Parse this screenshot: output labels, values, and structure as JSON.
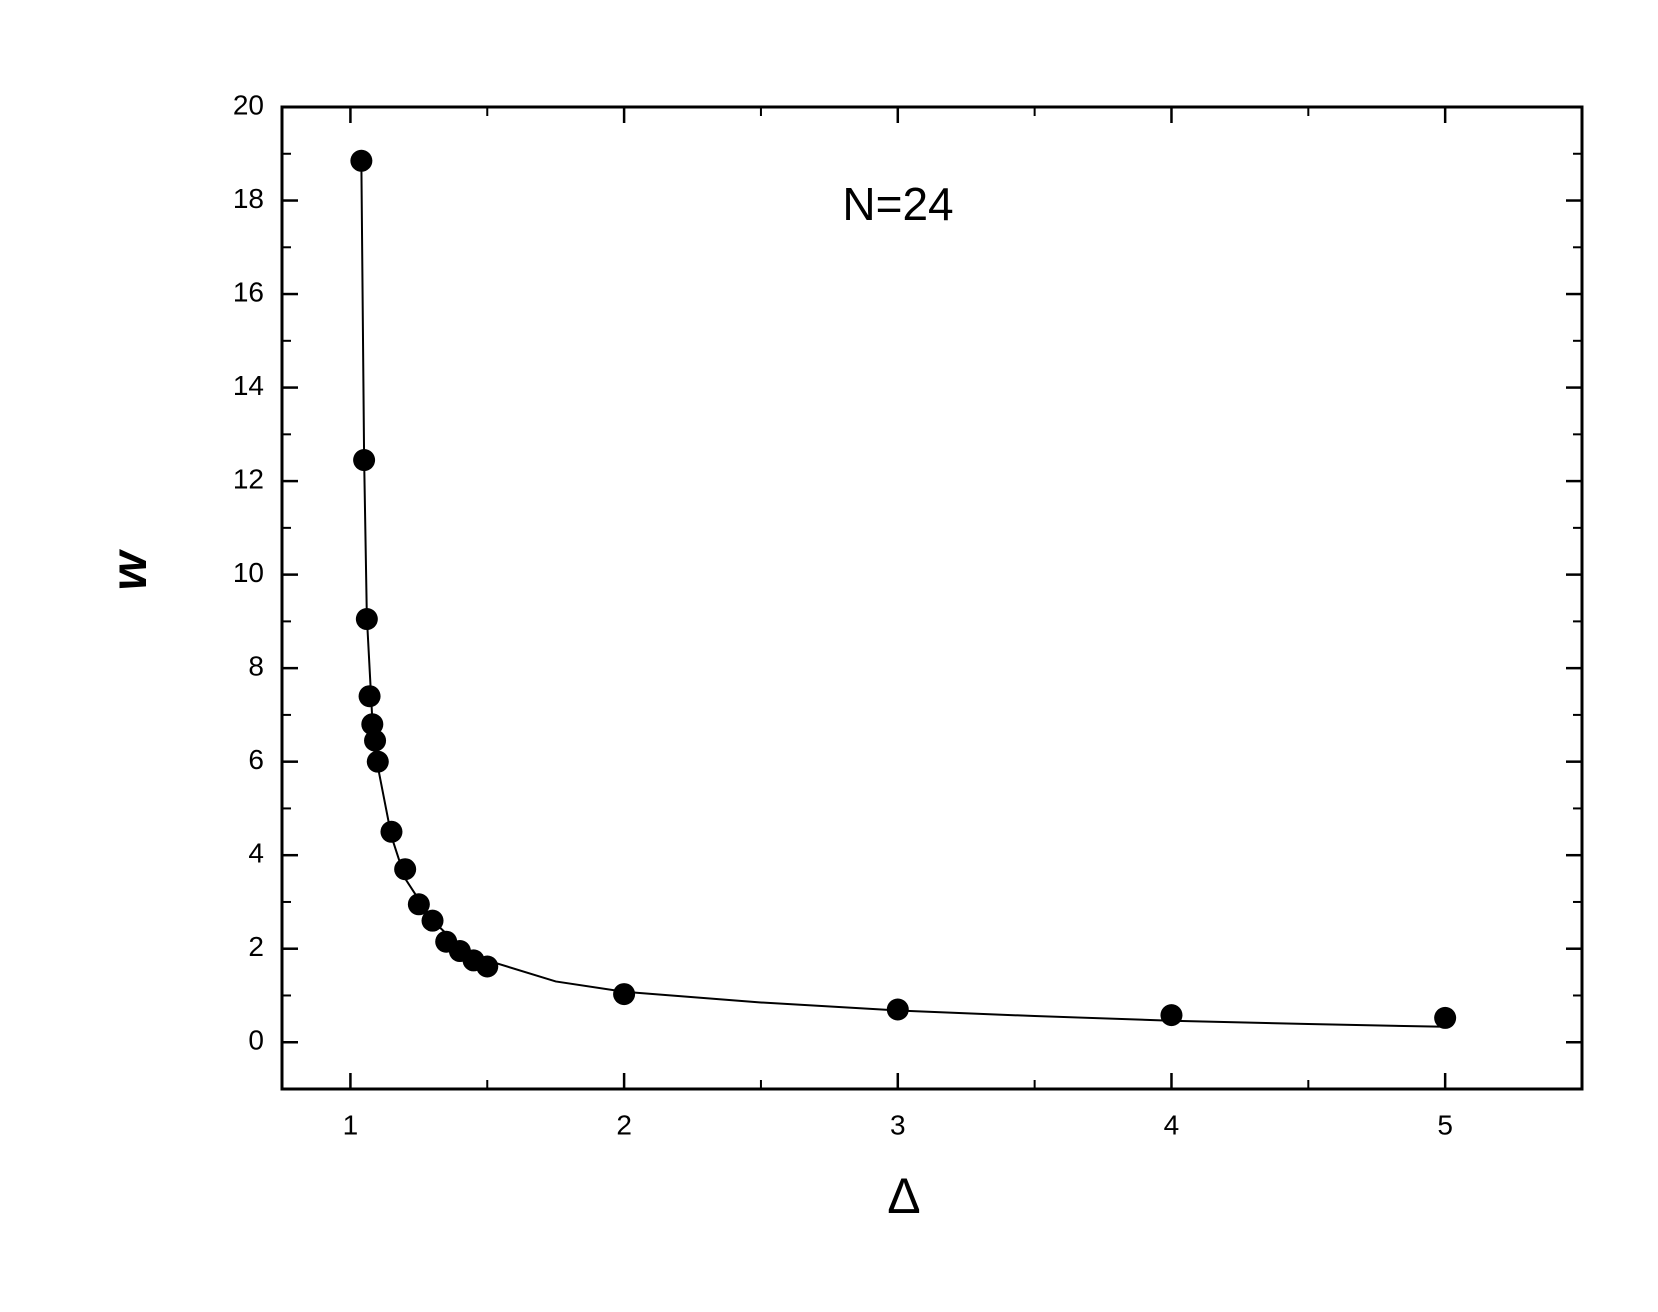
{
  "chart_data": {
    "type": "scatter",
    "x_label": "Δ",
    "y_label": "w",
    "annotation": "N=24",
    "xlim": [
      0.75,
      5.5
    ],
    "ylim": [
      -1,
      20
    ],
    "xticks": [
      1,
      2,
      3,
      4,
      5
    ],
    "yticks": [
      0,
      2,
      4,
      6,
      8,
      10,
      12,
      14,
      16,
      18,
      20
    ],
    "series": [
      {
        "name": "data",
        "color": "#000000",
        "x": [
          1.04,
          1.05,
          1.06,
          1.07,
          1.08,
          1.09,
          1.1,
          1.15,
          1.2,
          1.25,
          1.3,
          1.35,
          1.4,
          1.45,
          1.5,
          2,
          3,
          4,
          5
        ],
        "values": [
          18.85,
          12.45,
          9.05,
          7.4,
          6.8,
          6.45,
          6.0,
          4.5,
          3.7,
          2.95,
          2.6,
          2.15,
          1.95,
          1.75,
          1.62,
          1.03,
          0.7,
          0.58,
          0.52
        ]
      },
      {
        "name": "fit",
        "color": "#000000",
        "line": true,
        "x": [
          1.04,
          1.05,
          1.06,
          1.08,
          1.1,
          1.15,
          1.2,
          1.3,
          1.4,
          1.5,
          1.75,
          2,
          2.5,
          3,
          3.5,
          4,
          4.5,
          5
        ],
        "values": [
          18.8,
          12.5,
          9.1,
          6.9,
          5.9,
          4.4,
          3.5,
          2.6,
          2.05,
          1.75,
          1.3,
          1.08,
          0.85,
          0.68,
          0.56,
          0.46,
          0.39,
          0.33
        ]
      }
    ]
  }
}
